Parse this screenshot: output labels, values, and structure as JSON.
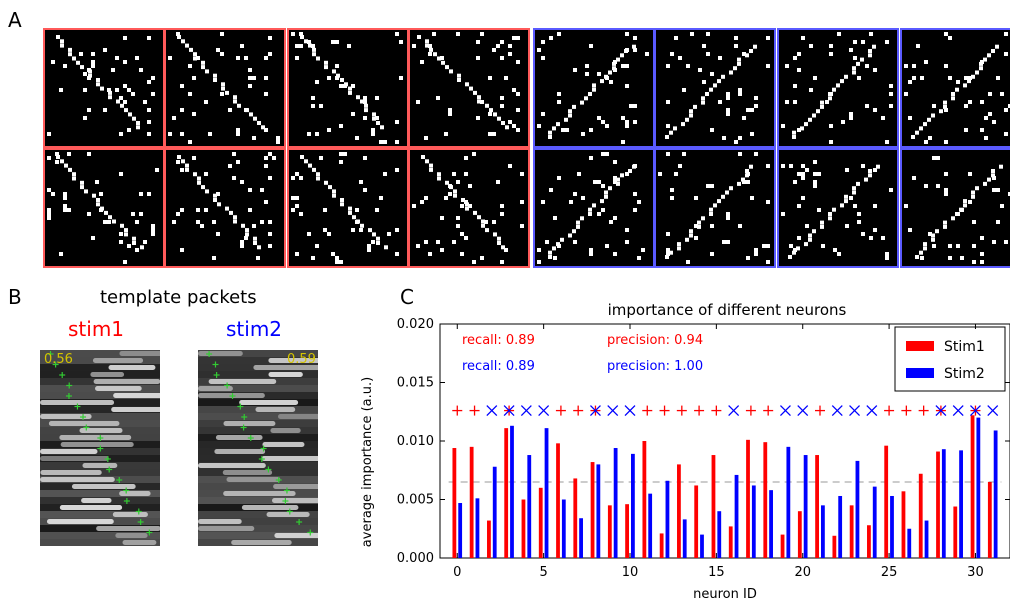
{
  "panel_labels": {
    "a": "A",
    "b": "B",
    "c": "C"
  },
  "panel_b": {
    "title": "template packets",
    "stim1": {
      "label": "stim1",
      "color": "#ff0000",
      "score": "0.56"
    },
    "stim2": {
      "label": "stim2",
      "color": "#0000ff",
      "score": "0.59"
    },
    "score_color": "#d4c400",
    "marker_color": "#33cc33"
  },
  "panel_a": {
    "description_colors": {
      "stim1_border": "#ff5a5a",
      "stim2_border": "#5a5aff"
    }
  },
  "chart_data": {
    "type": "bar",
    "title": "importance of different neurons",
    "xlabel": "neuron ID",
    "ylabel": "average importance (a.u.)",
    "xlim": [
      -1,
      32
    ],
    "ylim": [
      0.0,
      0.02
    ],
    "xticks": [
      0,
      5,
      10,
      15,
      20,
      25,
      30
    ],
    "yticks": [
      "0.000",
      "0.005",
      "0.010",
      "0.015",
      "0.020"
    ],
    "x": [
      0,
      1,
      2,
      3,
      4,
      5,
      6,
      7,
      8,
      9,
      10,
      11,
      12,
      13,
      14,
      15,
      16,
      17,
      18,
      19,
      20,
      21,
      22,
      23,
      24,
      25,
      26,
      27,
      28,
      29,
      30,
      31
    ],
    "series": [
      {
        "name": "Stim1",
        "color": "#ff0000",
        "values": [
          0.0094,
          0.0095,
          0.0032,
          0.0111,
          0.005,
          0.006,
          0.0098,
          0.0068,
          0.0082,
          0.0045,
          0.0046,
          0.01,
          0.0021,
          0.008,
          0.0062,
          0.0088,
          0.0027,
          0.0101,
          0.0099,
          0.002,
          0.004,
          0.0088,
          0.0019,
          0.0045,
          0.0028,
          0.0096,
          0.0057,
          0.0072,
          0.0091,
          0.0044,
          0.0122,
          0.0065
        ]
      },
      {
        "name": "Stim2",
        "color": "#0000ff",
        "values": [
          0.0047,
          0.0051,
          0.0078,
          0.0113,
          0.0088,
          0.0111,
          0.005,
          0.0034,
          0.008,
          0.0094,
          0.0089,
          0.0055,
          0.0066,
          0.0033,
          0.002,
          0.004,
          0.0071,
          0.0062,
          0.0058,
          0.0095,
          0.0088,
          0.0045,
          0.0053,
          0.0083,
          0.0061,
          0.0053,
          0.0025,
          0.0032,
          0.0093,
          0.0092,
          0.012,
          0.0109
        ]
      }
    ],
    "threshold": {
      "value": 0.0065,
      "color": "#bbbbbb",
      "style": "dashed"
    },
    "markers": {
      "y": 0.0126,
      "labels": [
        "Stim1",
        "Stim1",
        "Stim2",
        "both",
        "Stim2",
        "Stim2",
        "Stim1",
        "Stim1",
        "both",
        "Stim2",
        "Stim2",
        "Stim1",
        "Stim1",
        "Stim1",
        "Stim1",
        "Stim1",
        "Stim2",
        "Stim1",
        "Stim1",
        "Stim2",
        "Stim2",
        "Stim1",
        "Stim2",
        "Stim2",
        "Stim2",
        "Stim1",
        "Stim1",
        "Stim1",
        "both",
        "Stim2",
        "both",
        "Stim2"
      ]
    },
    "annotations": [
      {
        "text": "recall: 0.89",
        "color": "#ff0000"
      },
      {
        "text": "precision: 0.94",
        "color": "#ff0000"
      },
      {
        "text": "recall: 0.89",
        "color": "#0000ff"
      },
      {
        "text": "precision: 1.00",
        "color": "#0000ff"
      }
    ],
    "legend": {
      "position": "top-right",
      "entries": [
        "Stim1",
        "Stim2"
      ]
    },
    "grid": false
  }
}
